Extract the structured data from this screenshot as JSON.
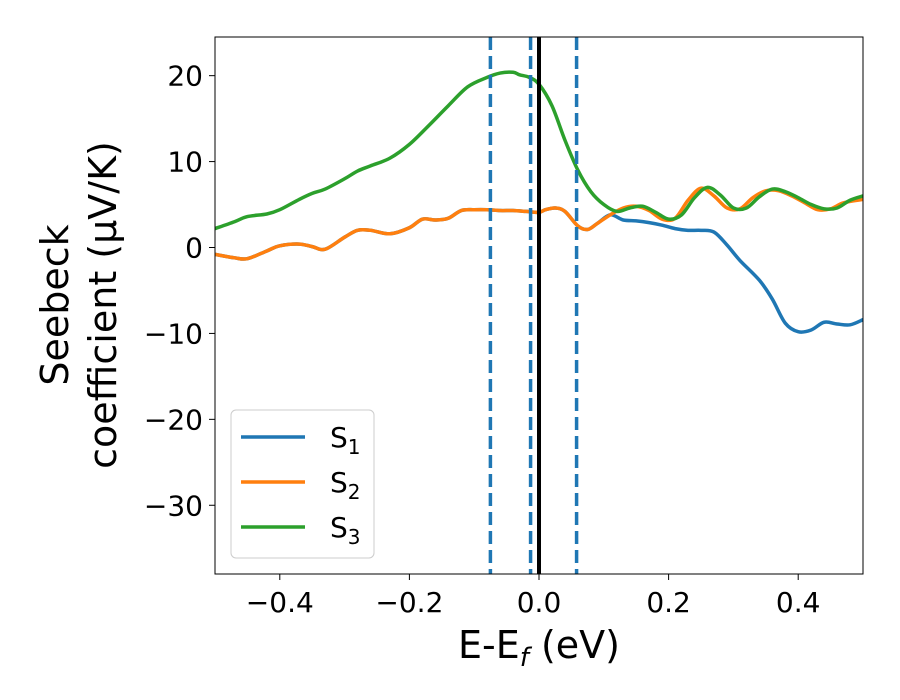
{
  "chart_data": {
    "type": "line",
    "title": "",
    "xlabel": {
      "main": "E-E",
      "sub": "f",
      "suffix": " (eV)"
    },
    "ylabel": {
      "line1": "Seebeck",
      "line2": "coefficient  (μV/K)"
    },
    "xlim": [
      -0.5,
      0.5
    ],
    "ylim": [
      -38,
      24.5
    ],
    "xticks": [
      {
        "value": -0.4,
        "label": "−0.4"
      },
      {
        "value": -0.2,
        "label": "−0.2"
      },
      {
        "value": 0.0,
        "label": "0.0"
      },
      {
        "value": 0.2,
        "label": "0.2"
      },
      {
        "value": 0.4,
        "label": "0.4"
      }
    ],
    "yticks": [
      {
        "value": 20,
        "label": "20"
      },
      {
        "value": 10,
        "label": "10"
      },
      {
        "value": 0,
        "label": "0"
      },
      {
        "value": -10,
        "label": "−10"
      },
      {
        "value": -20,
        "label": "−20"
      },
      {
        "value": -30,
        "label": "−30"
      }
    ],
    "vlines": [
      {
        "x": 0.0,
        "style": "solid",
        "color": "#000000"
      },
      {
        "x": -0.075,
        "style": "dashed",
        "color": "#1f77b4"
      },
      {
        "x": -0.013,
        "style": "dashed",
        "color": "#1f77b4"
      },
      {
        "x": 0.058,
        "style": "dashed",
        "color": "#1f77b4"
      }
    ],
    "legend_position": "lower-left",
    "series": [
      {
        "name": "S",
        "sub": "1",
        "color": "#1f77b4",
        "x": [
          -0.5,
          -0.47,
          -0.45,
          -0.42,
          -0.4,
          -0.37,
          -0.35,
          -0.33,
          -0.3,
          -0.28,
          -0.26,
          -0.23,
          -0.2,
          -0.18,
          -0.16,
          -0.14,
          -0.12,
          -0.1,
          -0.08,
          -0.06,
          -0.04,
          -0.02,
          0.0,
          0.01,
          0.025,
          0.04,
          0.06,
          0.075,
          0.09,
          0.11,
          0.13,
          0.15,
          0.17,
          0.19,
          0.21,
          0.23,
          0.25,
          0.27,
          0.29,
          0.31,
          0.34,
          0.36,
          0.38,
          0.4,
          0.42,
          0.44,
          0.46,
          0.48,
          0.5
        ],
        "y": [
          -0.8,
          -1.2,
          -1.3,
          -0.4,
          0.2,
          0.4,
          0.1,
          -0.2,
          1.2,
          2.0,
          2.0,
          1.6,
          2.3,
          3.3,
          3.2,
          3.4,
          4.3,
          4.4,
          4.4,
          4.3,
          4.3,
          4.2,
          4.1,
          4.4,
          4.6,
          4.2,
          2.5,
          2.1,
          2.8,
          3.8,
          3.2,
          3.1,
          2.9,
          2.6,
          2.2,
          2.0,
          2.0,
          1.8,
          0.3,
          -1.5,
          -3.8,
          -6.0,
          -8.8,
          -9.8,
          -9.6,
          -8.7,
          -8.9,
          -9.0,
          -8.4
        ]
      },
      {
        "name": "S",
        "sub": "2",
        "color": "#ff7f0e",
        "x": [
          -0.5,
          -0.47,
          -0.45,
          -0.42,
          -0.4,
          -0.37,
          -0.35,
          -0.33,
          -0.3,
          -0.28,
          -0.26,
          -0.23,
          -0.2,
          -0.18,
          -0.16,
          -0.14,
          -0.12,
          -0.1,
          -0.08,
          -0.06,
          -0.04,
          -0.02,
          0.0,
          0.01,
          0.025,
          0.04,
          0.06,
          0.075,
          0.09,
          0.11,
          0.13,
          0.15,
          0.17,
          0.19,
          0.21,
          0.23,
          0.25,
          0.27,
          0.29,
          0.31,
          0.33,
          0.35,
          0.37,
          0.39,
          0.41,
          0.43,
          0.45,
          0.47,
          0.5
        ],
        "y": [
          -0.8,
          -1.2,
          -1.3,
          -0.4,
          0.2,
          0.4,
          0.1,
          -0.2,
          1.2,
          2.0,
          2.0,
          1.6,
          2.3,
          3.3,
          3.2,
          3.4,
          4.3,
          4.4,
          4.4,
          4.3,
          4.3,
          4.2,
          4.1,
          4.4,
          4.6,
          4.2,
          2.5,
          2.1,
          2.8,
          3.8,
          4.6,
          4.8,
          4.3,
          3.3,
          3.4,
          5.5,
          6.9,
          6.0,
          4.6,
          4.5,
          5.8,
          6.6,
          6.6,
          6.0,
          5.2,
          4.4,
          4.5,
          5.2,
          5.6
        ]
      },
      {
        "name": "S",
        "sub": "3",
        "color": "#2ca02c",
        "x": [
          -0.5,
          -0.47,
          -0.45,
          -0.42,
          -0.4,
          -0.37,
          -0.35,
          -0.33,
          -0.3,
          -0.28,
          -0.26,
          -0.23,
          -0.2,
          -0.17,
          -0.14,
          -0.11,
          -0.08,
          -0.06,
          -0.04,
          -0.03,
          -0.015,
          0.0,
          0.02,
          0.04,
          0.06,
          0.08,
          0.1,
          0.12,
          0.14,
          0.16,
          0.18,
          0.2,
          0.22,
          0.24,
          0.26,
          0.28,
          0.3,
          0.32,
          0.34,
          0.36,
          0.38,
          0.4,
          0.42,
          0.44,
          0.46,
          0.48,
          0.5
        ],
        "y": [
          2.2,
          3.0,
          3.6,
          3.9,
          4.4,
          5.6,
          6.3,
          6.8,
          8.0,
          8.9,
          9.5,
          10.4,
          12.0,
          14.2,
          16.5,
          18.7,
          19.8,
          20.3,
          20.4,
          20.1,
          19.8,
          19.0,
          16.5,
          12.5,
          9.0,
          6.5,
          5.0,
          4.2,
          4.6,
          4.8,
          4.1,
          3.3,
          3.8,
          5.8,
          7.0,
          6.1,
          4.6,
          4.6,
          5.9,
          6.8,
          6.5,
          5.8,
          5.0,
          4.5,
          4.6,
          5.5,
          6.0
        ]
      }
    ]
  }
}
